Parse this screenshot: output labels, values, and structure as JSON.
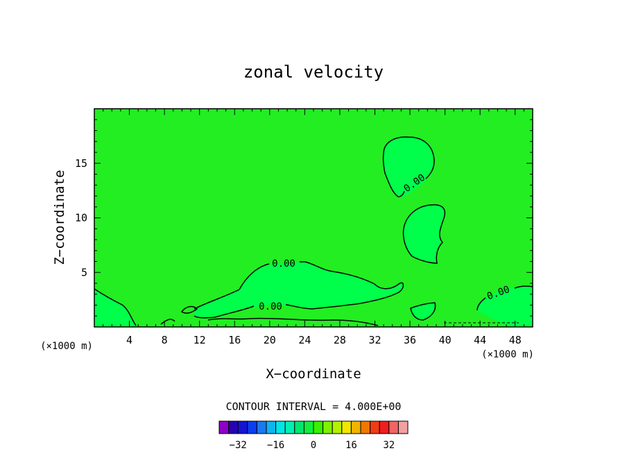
{
  "chart_data": {
    "type": "contour",
    "title": "zonal velocity",
    "xlabel": "X−coordinate",
    "ylabel": "Z−coordinate",
    "x_unit_left": "(×1000 m)",
    "x_unit_right": "(×1000 m)",
    "xlim": [
      0,
      50
    ],
    "ylim": [
      0,
      20
    ],
    "x_ticks": [
      4,
      8,
      12,
      16,
      20,
      24,
      28,
      32,
      36,
      40,
      44,
      48
    ],
    "y_ticks": [
      5,
      10,
      15
    ],
    "fill_color": "#22ee22",
    "positive_region_color": "#00ff4a",
    "contour_interval_label": "CONTOUR INTERVAL = 4.000E+00",
    "contour_label": "0.00",
    "colorbar": {
      "colors": [
        "#8e00c8",
        "#2800b0",
        "#1414d4",
        "#0a3ef0",
        "#1c78f0",
        "#10b4f0",
        "#00e6e6",
        "#00f0b0",
        "#00e66e",
        "#10f03c",
        "#38f000",
        "#7ef000",
        "#b4f000",
        "#f0e600",
        "#f0b400",
        "#f07800",
        "#f03c14",
        "#f01e1e",
        "#f06464",
        "#f0a0a0"
      ],
      "tick_labels": [
        "−32",
        "−16",
        "0",
        "16",
        "32"
      ],
      "tick_values": [
        -32,
        -16,
        0,
        16,
        32
      ]
    }
  }
}
